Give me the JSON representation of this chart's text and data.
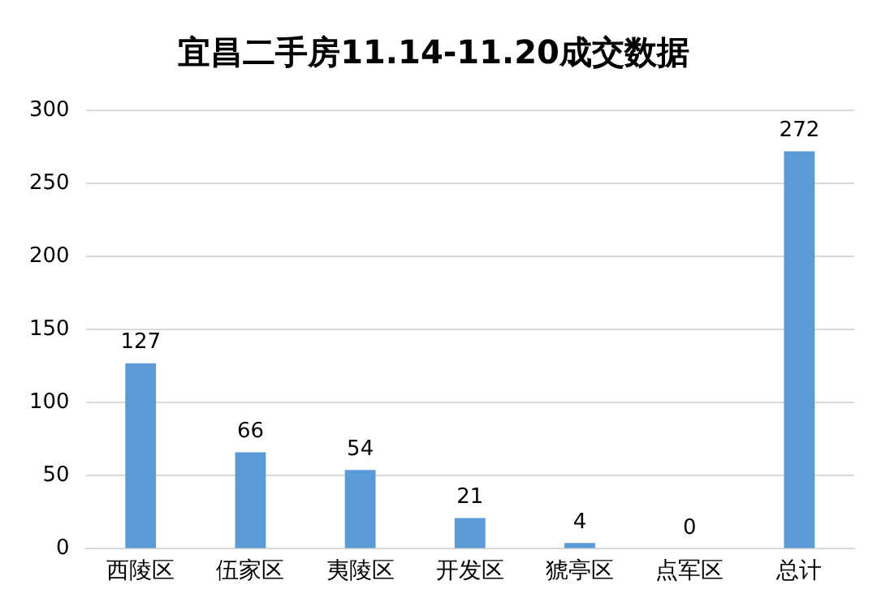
{
  "chart_data": {
    "type": "bar",
    "title": "宜昌二手房11.14-11.20成交数据",
    "categories": [
      "西陵区",
      "伍家区",
      "夷陵区",
      "开发区",
      "猇亭区",
      "点军区",
      "总计"
    ],
    "values": [
      127,
      66,
      54,
      21,
      4,
      0,
      272
    ],
    "color": "#5b9bd5",
    "ylim": [
      0,
      300
    ],
    "yticks": [
      0,
      50,
      100,
      150,
      200,
      250,
      300
    ],
    "grid": "y",
    "data_labels": true
  }
}
